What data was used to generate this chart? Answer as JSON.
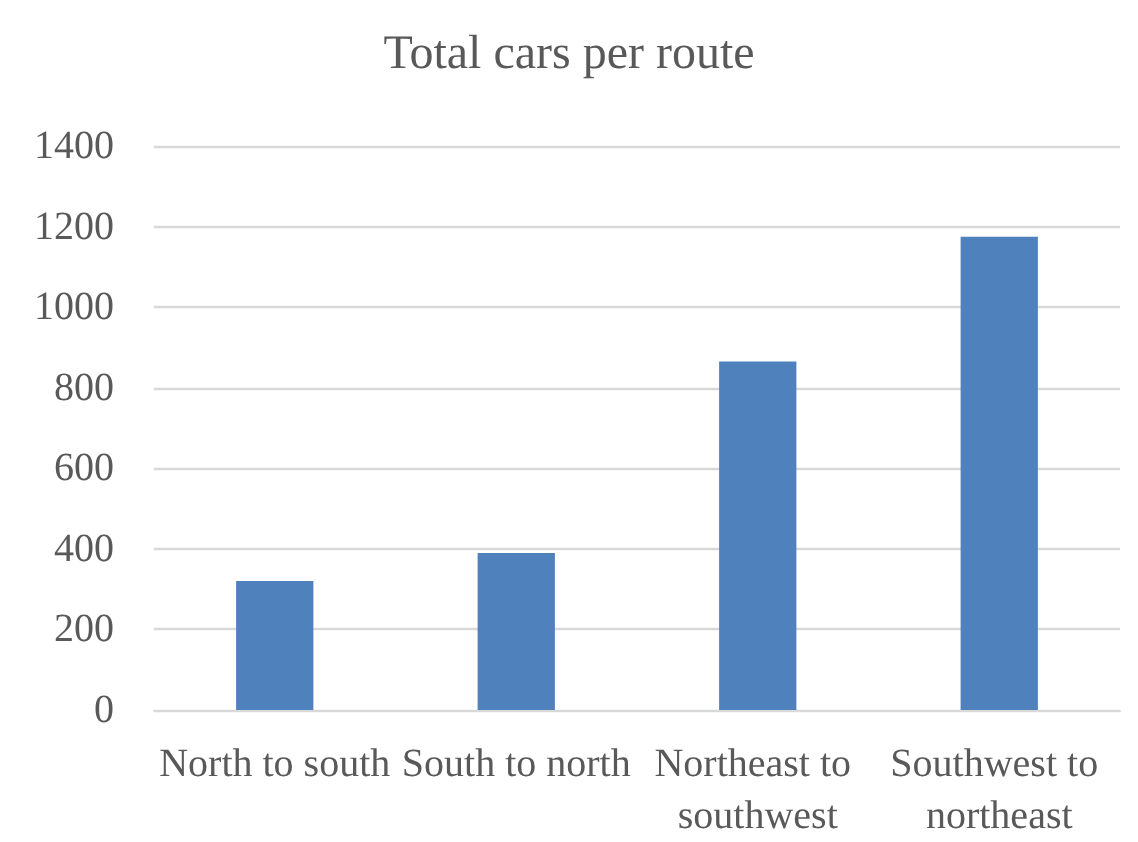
{
  "chart_data": {
    "type": "bar",
    "title": "Total cars per route",
    "categories": [
      "North to south",
      "South to north",
      "Northeast to southwest",
      "Southwest to northeast"
    ],
    "values": [
      320,
      390,
      865,
      1175
    ],
    "color": "#4f81bd",
    "ylim": [
      0,
      1400
    ],
    "yticks": [
      0,
      200,
      400,
      600,
      800,
      1000,
      1200,
      1400
    ],
    "grid": "y"
  }
}
